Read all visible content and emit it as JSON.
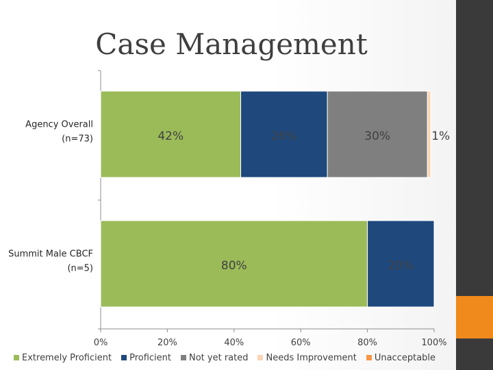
{
  "title": "Case Management",
  "chart_data": {
    "type": "bar",
    "orientation": "horizontal",
    "stacked": true,
    "categories": [
      "Agency Overall (n=73)",
      "Summit Male CBCF (n=5)"
    ],
    "category_lines": [
      [
        "Agency Overall",
        "(n=73)"
      ],
      [
        "Summit Male CBCF",
        "(n=5)"
      ]
    ],
    "series": [
      {
        "name": "Extremely Proficient",
        "values": [
          42,
          80
        ],
        "labels": [
          "42%",
          "80%"
        ],
        "color": "#9bbb59"
      },
      {
        "name": "Proficient",
        "values": [
          26,
          20
        ],
        "labels": [
          "26%",
          "20%"
        ],
        "color": "#1f497d"
      },
      {
        "name": "Not yet rated",
        "values": [
          30,
          0
        ],
        "labels": [
          "30%",
          ""
        ],
        "color": "#7f7f7f"
      },
      {
        "name": "Needs Improvement",
        "values": [
          1,
          0
        ],
        "labels": [
          "1%",
          ""
        ],
        "color": "#fcd5b4"
      },
      {
        "name": "Unacceptable",
        "values": [
          0,
          0
        ],
        "labels": [
          "",
          ""
        ],
        "color": "#f79646"
      }
    ],
    "x_ticks": [
      "0%",
      "20%",
      "40%",
      "60%",
      "80%",
      "100%"
    ],
    "x_tick_values": [
      0,
      20,
      40,
      60,
      80,
      100
    ],
    "xlim": [
      0,
      100
    ],
    "grid": false,
    "legend_position": "bottom"
  }
}
